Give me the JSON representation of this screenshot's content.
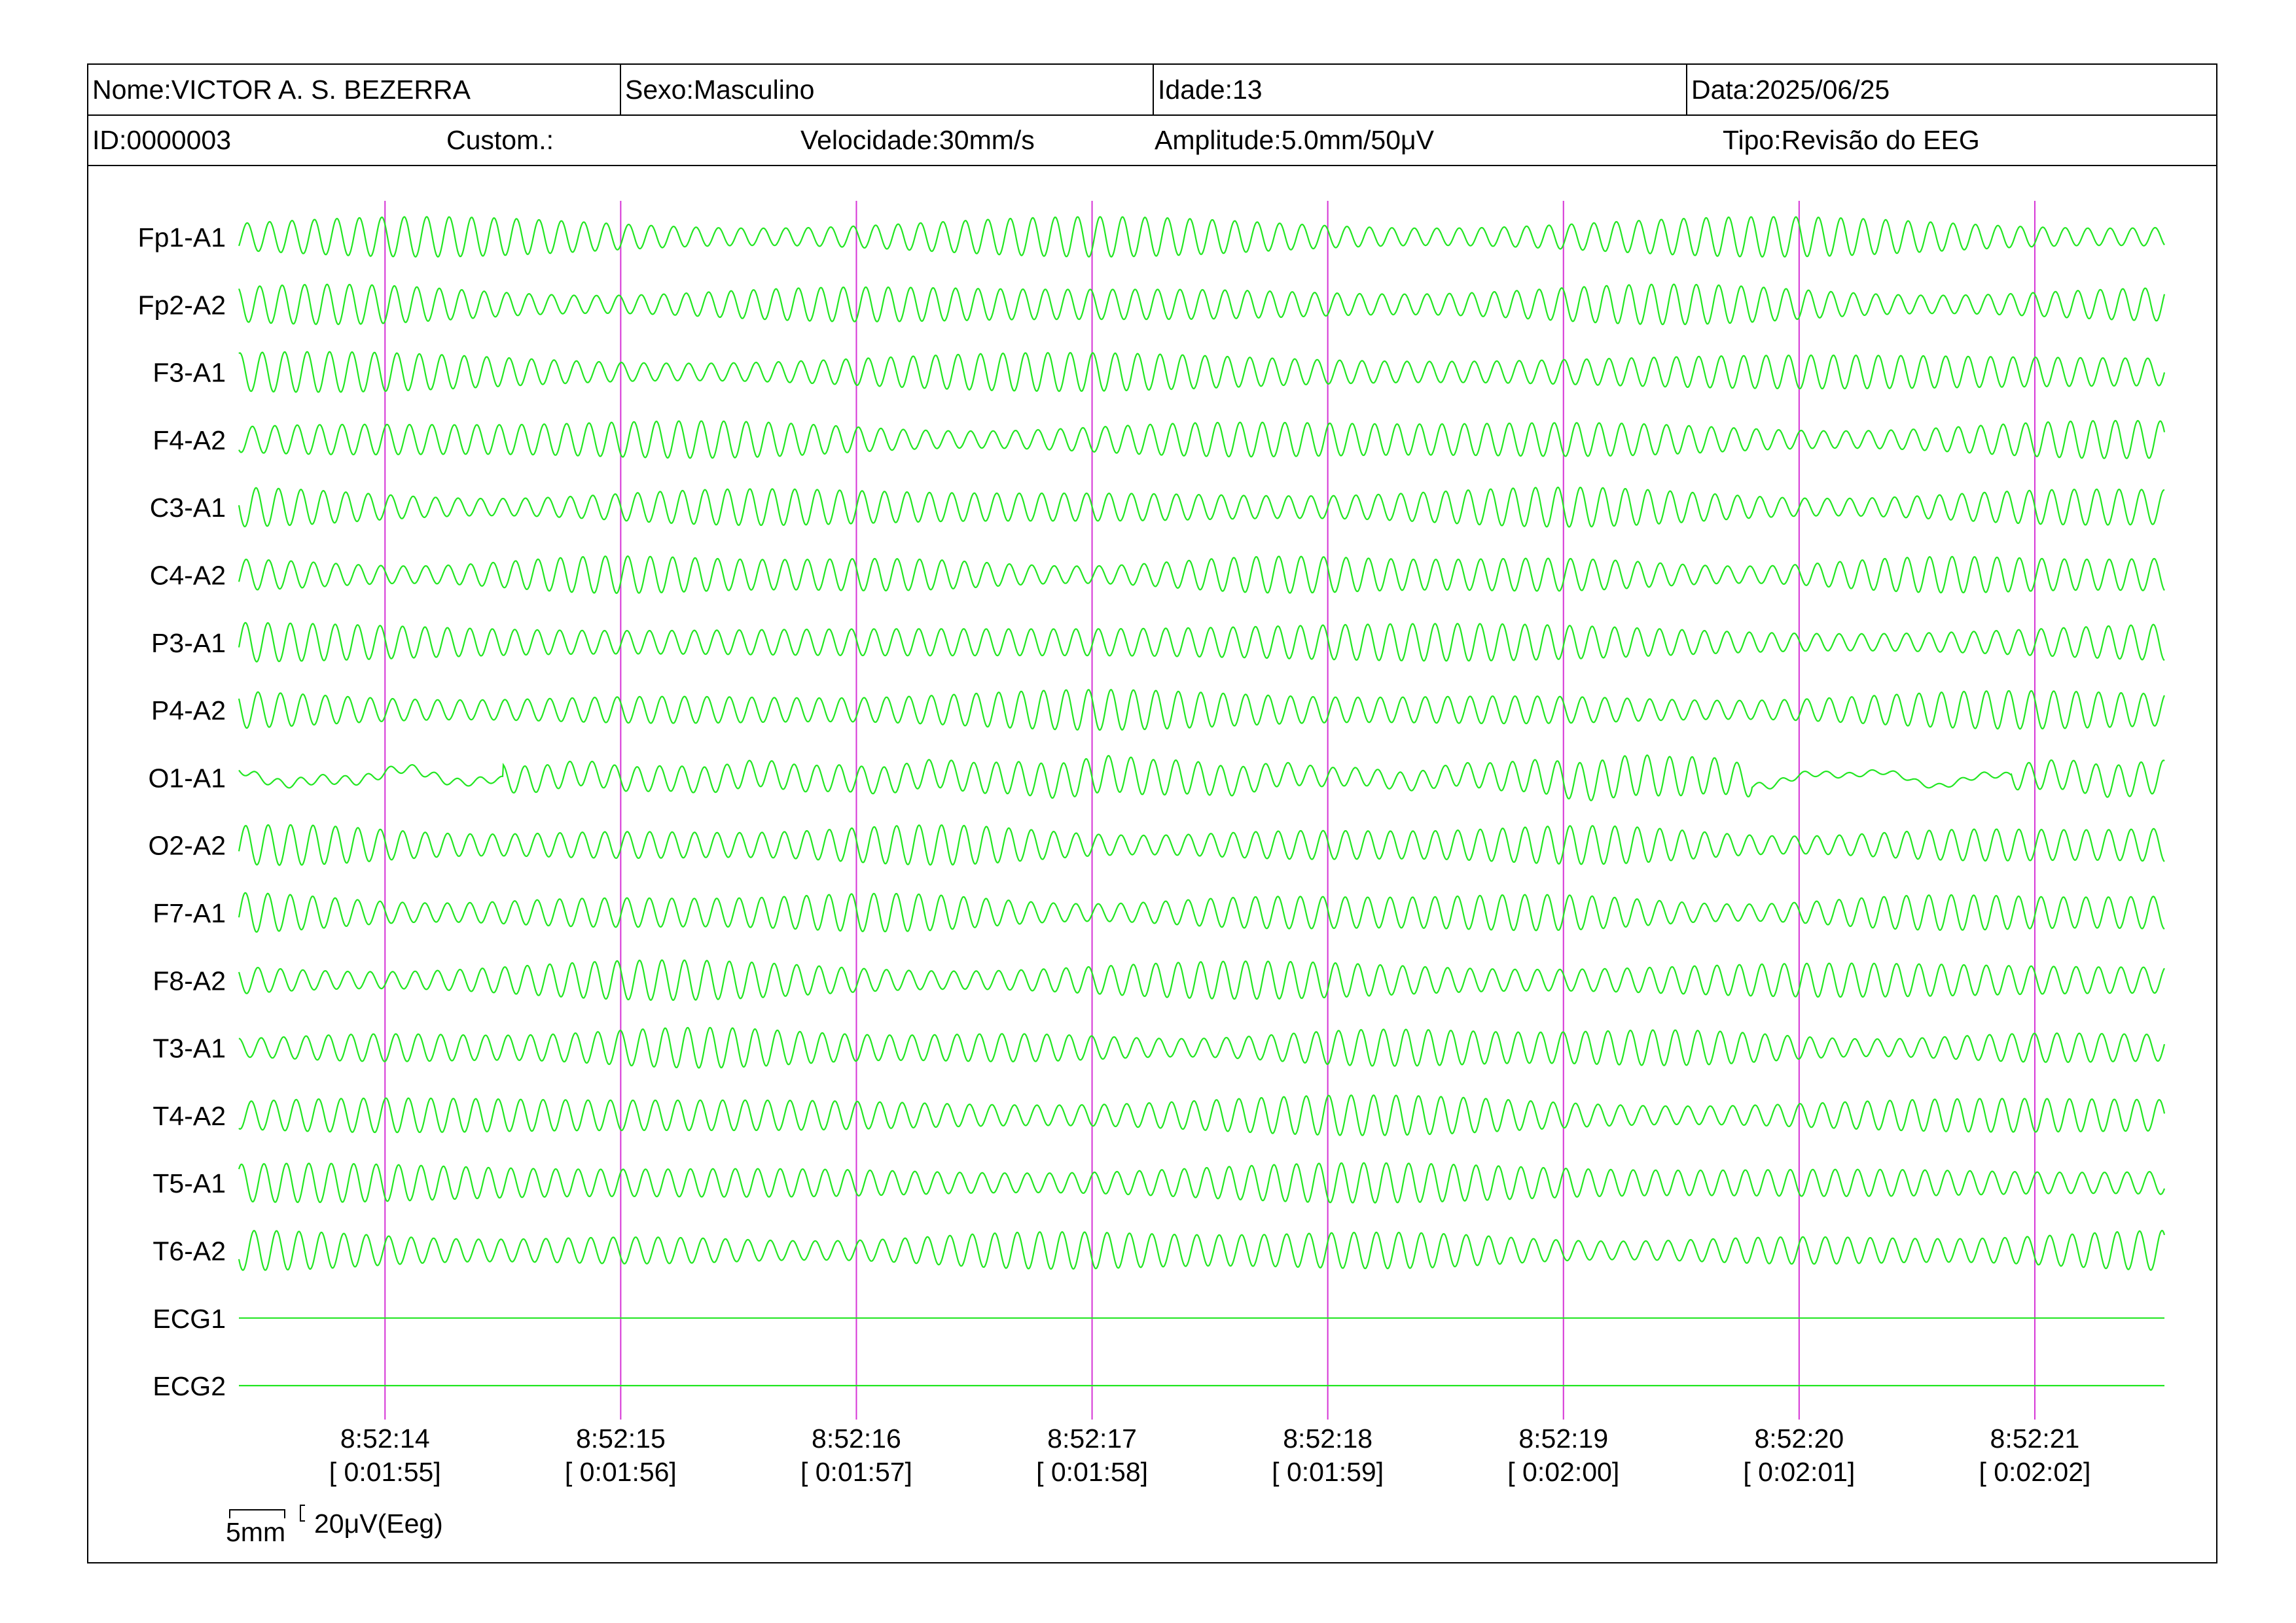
{
  "header": {
    "nome": "Nome:VICTOR A. S. BEZERRA",
    "sexo": "Sexo:Masculino",
    "idade": "Idade:13",
    "data": "Data:2025/06/25",
    "id": "ID:0000003",
    "custom": "Custom.:",
    "velocidade": "Velocidade:30mm/s",
    "amplitude": "Amplitude:5.0mm/50μV",
    "tipo": "Tipo:Revisão do EEG"
  },
  "scale_bar": {
    "time_label": "5mm",
    "amp_label": "20μV(Eeg)"
  },
  "colors": {
    "trace": "#22e622",
    "marker": "#d633d6",
    "frame": "#000000"
  },
  "chart_data": {
    "type": "line",
    "channels": [
      "Fp1-A1",
      "Fp2-A2",
      "F3-A1",
      "F4-A2",
      "C3-A1",
      "C4-A2",
      "P3-A1",
      "P4-A2",
      "O1-A1",
      "O2-A2",
      "F7-A1",
      "F8-A2",
      "T3-A1",
      "T4-A2",
      "T5-A1",
      "T6-A2",
      "ECG1",
      "ECG2"
    ],
    "ticks": [
      {
        "time": "8:52:14",
        "elapsed": "[ 0:01:55]"
      },
      {
        "time": "8:52:15",
        "elapsed": "[ 0:01:56]"
      },
      {
        "time": "8:52:16",
        "elapsed": "[ 0:01:57]"
      },
      {
        "time": "8:52:17",
        "elapsed": "[ 0:01:58]"
      },
      {
        "time": "8:52:18",
        "elapsed": "[ 0:01:59]"
      },
      {
        "time": "8:52:19",
        "elapsed": "[ 0:02:00]"
      },
      {
        "time": "8:52:20",
        "elapsed": "[ 0:02:01]"
      },
      {
        "time": "8:52:21",
        "elapsed": "[ 0:02:02]"
      }
    ],
    "xlim_seconds": [
      -0.62,
      7.55
    ],
    "dominant_frequency_hz": 10.5,
    "flat_channels": [
      "ECG1",
      "ECG2"
    ],
    "grid": false
  }
}
